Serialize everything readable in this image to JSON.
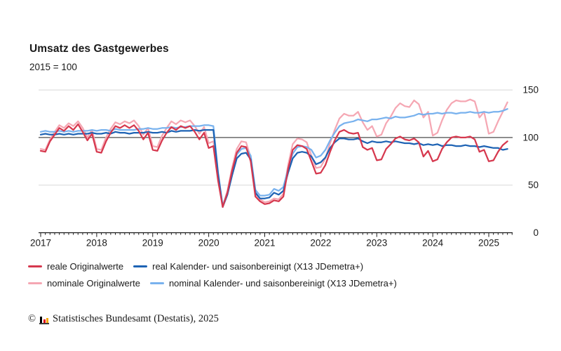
{
  "header": {
    "title": "Umsatz des Gastgewerbes",
    "subtitle": "2015 = 100"
  },
  "chart_data": {
    "type": "line",
    "title": "Umsatz des Gastgewerbes",
    "index_base": "2015 = 100",
    "x_unit": "month",
    "x_range": [
      "2017-01",
      "2025-05"
    ],
    "x_tick_labels": [
      "2017",
      "2018",
      "2019",
      "2020",
      "2021",
      "2022",
      "2023",
      "2024",
      "2025"
    ],
    "y_ticks": [
      0,
      50,
      100,
      150
    ],
    "ylim": [
      0,
      150
    ],
    "y_axis_side": "right",
    "reference_line": 100,
    "gridlines": [
      50,
      150
    ],
    "grid_color": "#d8d8d8",
    "reference_line_color": "#4d4d4d",
    "axis_color": "#1a1a1a",
    "legend_position": "bottom",
    "series": [
      {
        "name": "reale Originalwerte",
        "color": "#d6384e",
        "values": [
          86,
          85,
          96,
          103,
          110,
          107,
          112,
          108,
          114,
          106,
          97,
          104,
          85,
          84,
          96,
          105,
          112,
          110,
          113,
          110,
          113,
          107,
          98,
          105,
          87,
          86,
          97,
          105,
          111,
          108,
          112,
          110,
          112,
          106,
          98,
          105,
          89,
          91,
          55,
          27,
          42,
          65,
          84,
          91,
          90,
          75,
          38,
          33,
          30,
          31,
          34,
          33,
          38,
          67,
          87,
          92,
          91,
          88,
          75,
          62,
          63,
          71,
          85,
          97,
          106,
          108,
          105,
          104,
          105,
          90,
          87,
          89,
          76,
          77,
          88,
          93,
          99,
          101,
          98,
          97,
          99,
          95,
          80,
          86,
          75,
          77,
          88,
          95,
          100,
          101,
          100,
          100,
          101,
          98,
          85,
          87,
          75,
          76,
          85,
          92,
          96
        ]
      },
      {
        "name": "nominale Originalwerte",
        "color": "#f5a7b3",
        "values": [
          88,
          87,
          98,
          106,
          113,
          110,
          115,
          112,
          117,
          110,
          100,
          108,
          88,
          87,
          100,
          109,
          116,
          114,
          117,
          115,
          118,
          112,
          103,
          110,
          91,
          90,
          102,
          110,
          117,
          114,
          118,
          116,
          118,
          112,
          104,
          111,
          94,
          96,
          58,
          28,
          44,
          68,
          88,
          96,
          95,
          79,
          41,
          35,
          32,
          33,
          36,
          35,
          41,
          71,
          93,
          99,
          98,
          95,
          81,
          68,
          69,
          78,
          94,
          108,
          120,
          125,
          123,
          123,
          127,
          116,
          108,
          112,
          101,
          103,
          115,
          122,
          131,
          136,
          133,
          132,
          139,
          135,
          121,
          127,
          102,
          105,
          118,
          129,
          136,
          139,
          138,
          138,
          140,
          138,
          121,
          127,
          104,
          106,
          117,
          127,
          137
        ]
      },
      {
        "name": "real Kalender- und saisonbereinigt (X13 JDemetra+)",
        "color": "#1e63b4",
        "values": [
          103,
          104,
          103,
          103,
          104,
          103,
          104,
          103,
          104,
          104,
          104,
          105,
          104,
          104,
          105,
          104,
          106,
          105,
          105,
          104,
          105,
          105,
          105,
          106,
          105,
          105,
          106,
          105,
          107,
          106,
          107,
          107,
          107,
          108,
          107,
          108,
          108,
          108,
          62,
          27,
          40,
          60,
          78,
          83,
          84,
          77,
          42,
          36,
          36,
          37,
          42,
          40,
          44,
          63,
          78,
          84,
          85,
          84,
          80,
          72,
          74,
          79,
          89,
          95,
          99,
          99,
          98,
          98,
          99,
          96,
          94,
          96,
          95,
          95,
          96,
          95,
          96,
          95,
          94,
          94,
          93,
          94,
          92,
          93,
          92,
          93,
          91,
          92,
          92,
          91,
          91,
          92,
          91,
          91,
          90,
          91,
          90,
          89,
          89,
          87,
          88
        ]
      },
      {
        "name": "nominal Kalender- und saisonbereinigt (X13 JDemetra+)",
        "color": "#79b2ee",
        "values": [
          106,
          107,
          106,
          106,
          107,
          106,
          107,
          106,
          107,
          107,
          107,
          108,
          107,
          108,
          108,
          107,
          109,
          108,
          108,
          108,
          108,
          109,
          109,
          110,
          109,
          109,
          110,
          110,
          111,
          110,
          111,
          111,
          112,
          112,
          112,
          113,
          113,
          112,
          64,
          28,
          42,
          63,
          82,
          88,
          89,
          81,
          45,
          39,
          39,
          40,
          46,
          44,
          48,
          67,
          83,
          90,
          91,
          90,
          87,
          79,
          81,
          87,
          97,
          105,
          112,
          115,
          116,
          117,
          119,
          118,
          117,
          119,
          119,
          120,
          121,
          120,
          122,
          121,
          121,
          122,
          123,
          125,
          124,
          125,
          125,
          126,
          125,
          126,
          126,
          125,
          126,
          126,
          127,
          126,
          126,
          127,
          126,
          127,
          127,
          128,
          130
        ]
      }
    ]
  },
  "footer": {
    "copyright_symbol": "©",
    "text": "Statistisches Bundesamt (Destatis), 2025",
    "logo_icon": "destatis-bars-icon",
    "logo_bar_colors": [
      "#000000",
      "#e30613",
      "#f6a800"
    ]
  }
}
